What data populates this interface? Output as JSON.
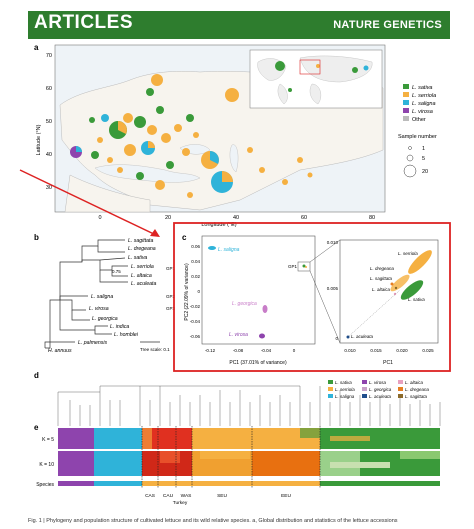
{
  "header": {
    "left": "ARTICLES",
    "right": "NATURE GENETICS"
  },
  "panels": {
    "a": "a",
    "b": "b",
    "c": "c",
    "d": "d",
    "e": "e"
  },
  "map": {
    "ylabel": "Latitude (°N)",
    "xlabel": "Longitude (°E)",
    "yticks": [
      "70",
      "60",
      "50",
      "40",
      "30"
    ],
    "xticks": [
      "0",
      "20",
      "40",
      "60",
      "80"
    ],
    "legend": [
      {
        "name": "L. sativa",
        "color": "#3a9a3a"
      },
      {
        "name": "L. serriola",
        "color": "#f5b041"
      },
      {
        "name": "L. saligna",
        "color": "#2fb3d9"
      },
      {
        "name": "L. virosa",
        "color": "#8e44ad"
      },
      {
        "name": "Other",
        "color": "#bbbbbb"
      }
    ],
    "size_legend_title": "Sample number",
    "size_legend": [
      "1",
      "5",
      "20"
    ]
  },
  "tree": {
    "taxa": [
      "L. sagittata",
      "L. dregeana",
      "L. sativa",
      "L. serriola",
      "L. altaica",
      "L. aculeata",
      "L. saligna",
      "L. virosa",
      "L. georgica",
      "L. indica",
      "L. homblei",
      "L. palmensis",
      "H. annuus"
    ],
    "bootstrap": "0.75",
    "scale": "Tree scale: 0.1",
    "group_labels": [
      "GP1",
      "GP2",
      "GP3"
    ]
  },
  "pca": {
    "xlabel": "PC1 (37.01% of variance)",
    "ylabel": "PC2 (22.09% of variance)",
    "xticks": [
      "-0.12",
      "-0.08",
      "-0.04",
      "0"
    ],
    "yticks": [
      "0.06",
      "0.04",
      "0.02",
      "0",
      "-0.02",
      "-0.04",
      "-0.06"
    ],
    "labels": [
      "L. saligna",
      "L. georgica",
      "L. virosa",
      "GP1"
    ],
    "inset": {
      "xlabel": "PC1",
      "xticks": [
        "0.010",
        "0.015",
        "0.020",
        "0.025"
      ],
      "yticks": [
        "0.010",
        "0.005",
        "0"
      ],
      "labels": [
        "L. serriola",
        "L. dregeana",
        "L. sagittata",
        "L. altaica",
        "L. sativa",
        "L. aculeata"
      ]
    }
  },
  "admixture": {
    "rows": [
      "K = 5",
      "K = 10",
      "Species"
    ],
    "regions": [
      "CAS",
      "CAU",
      "WAS",
      "Turkey",
      "SEU",
      "EEU"
    ],
    "legend": [
      {
        "name": "L. sativa",
        "color": "#3a9a3a"
      },
      {
        "name": "L. serriola",
        "color": "#f5b041"
      },
      {
        "name": "L. saligna",
        "color": "#2fb3d9"
      },
      {
        "name": "L. virosa",
        "color": "#8e44ad"
      },
      {
        "name": "L. georgica",
        "color": "#c8a2c8"
      },
      {
        "name": "L. aculeata",
        "color": "#1f4e8c"
      },
      {
        "name": "L. altaica",
        "color": "#e8a0c0"
      },
      {
        "name": "L. dregeana",
        "color": "#e67e22"
      },
      {
        "name": "L. sagittata",
        "color": "#8b6a2b"
      }
    ]
  },
  "caption": "Fig. 1 | Phylogeny and population structure of cultivated lettuce and its wild relative species. a, Global distribution and statistics of the lettuce accessions"
}
